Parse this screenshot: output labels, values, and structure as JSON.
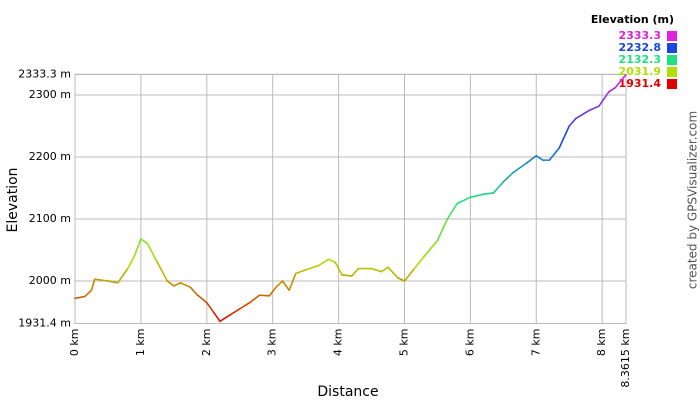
{
  "chart_data": {
    "type": "line",
    "x_label": "Distance",
    "y_label": "Elevation",
    "credit": "created by GPSVisualizer.com",
    "legend_title": "Elevation (m)",
    "legend": [
      {
        "value": 2333.3,
        "color": "#e020e0"
      },
      {
        "value": 2232.8,
        "color": "#1848e0"
      },
      {
        "value": 2132.3,
        "color": "#20e080"
      },
      {
        "value": 2031.9,
        "color": "#b0e000"
      },
      {
        "value": 1931.4,
        "color": "#e00000"
      }
    ],
    "xlim": [
      0,
      8.3615
    ],
    "ylim": [
      1931.4,
      2333.3
    ],
    "xticks": [
      {
        "value": 0,
        "label": "0 km"
      },
      {
        "value": 1,
        "label": "1 km"
      },
      {
        "value": 2,
        "label": "2 km"
      },
      {
        "value": 3,
        "label": "3 km"
      },
      {
        "value": 4,
        "label": "4 km"
      },
      {
        "value": 5,
        "label": "5 km"
      },
      {
        "value": 6,
        "label": "6 km"
      },
      {
        "value": 7,
        "label": "7 km"
      },
      {
        "value": 8,
        "label": "8 km"
      },
      {
        "value": 8.3615,
        "label": "8.3615 km"
      }
    ],
    "yticks": [
      {
        "value": 1931.4,
        "label": "1931.4 m"
      },
      {
        "value": 2000,
        "label": "2000 m"
      },
      {
        "value": 2100,
        "label": "2100 m"
      },
      {
        "value": 2200,
        "label": "2200 m"
      },
      {
        "value": 2300,
        "label": "2300 m"
      },
      {
        "value": 2333.3,
        "label": "2333.3 m"
      }
    ],
    "grid": true,
    "x": [
      0,
      0.15,
      0.25,
      0.3,
      0.5,
      0.65,
      0.8,
      0.9,
      1.0,
      1.1,
      1.25,
      1.4,
      1.5,
      1.6,
      1.75,
      1.85,
      2.0,
      2.1,
      2.2,
      2.35,
      2.5,
      2.65,
      2.8,
      2.95,
      3.05,
      3.15,
      3.25,
      3.35,
      3.5,
      3.7,
      3.85,
      3.95,
      4.05,
      4.2,
      4.3,
      4.5,
      4.65,
      4.75,
      4.9,
      5.0,
      5.15,
      5.3,
      5.5,
      5.65,
      5.8,
      6.0,
      6.2,
      6.35,
      6.5,
      6.65,
      6.85,
      7.0,
      7.1,
      7.2,
      7.35,
      7.5,
      7.6,
      7.8,
      7.95,
      8.1,
      8.2,
      8.3,
      8.3615
    ],
    "values": [
      1972,
      1975,
      1985,
      2003,
      2000,
      1997,
      2020,
      2040,
      2068,
      2060,
      2030,
      2000,
      1992,
      1997,
      1990,
      1978,
      1965,
      1950,
      1935,
      1945,
      1955,
      1965,
      1977,
      1976,
      1990,
      2000,
      1985,
      2012,
      2018,
      2025,
      2035,
      2030,
      2010,
      2008,
      2020,
      2020,
      2015,
      2022,
      2005,
      2000,
      2020,
      2040,
      2065,
      2100,
      2125,
      2135,
      2140,
      2142,
      2160,
      2175,
      2190,
      2202,
      2195,
      2195,
      2215,
      2250,
      2262,
      2275,
      2282,
      2305,
      2312,
      2325,
      2333
    ]
  }
}
